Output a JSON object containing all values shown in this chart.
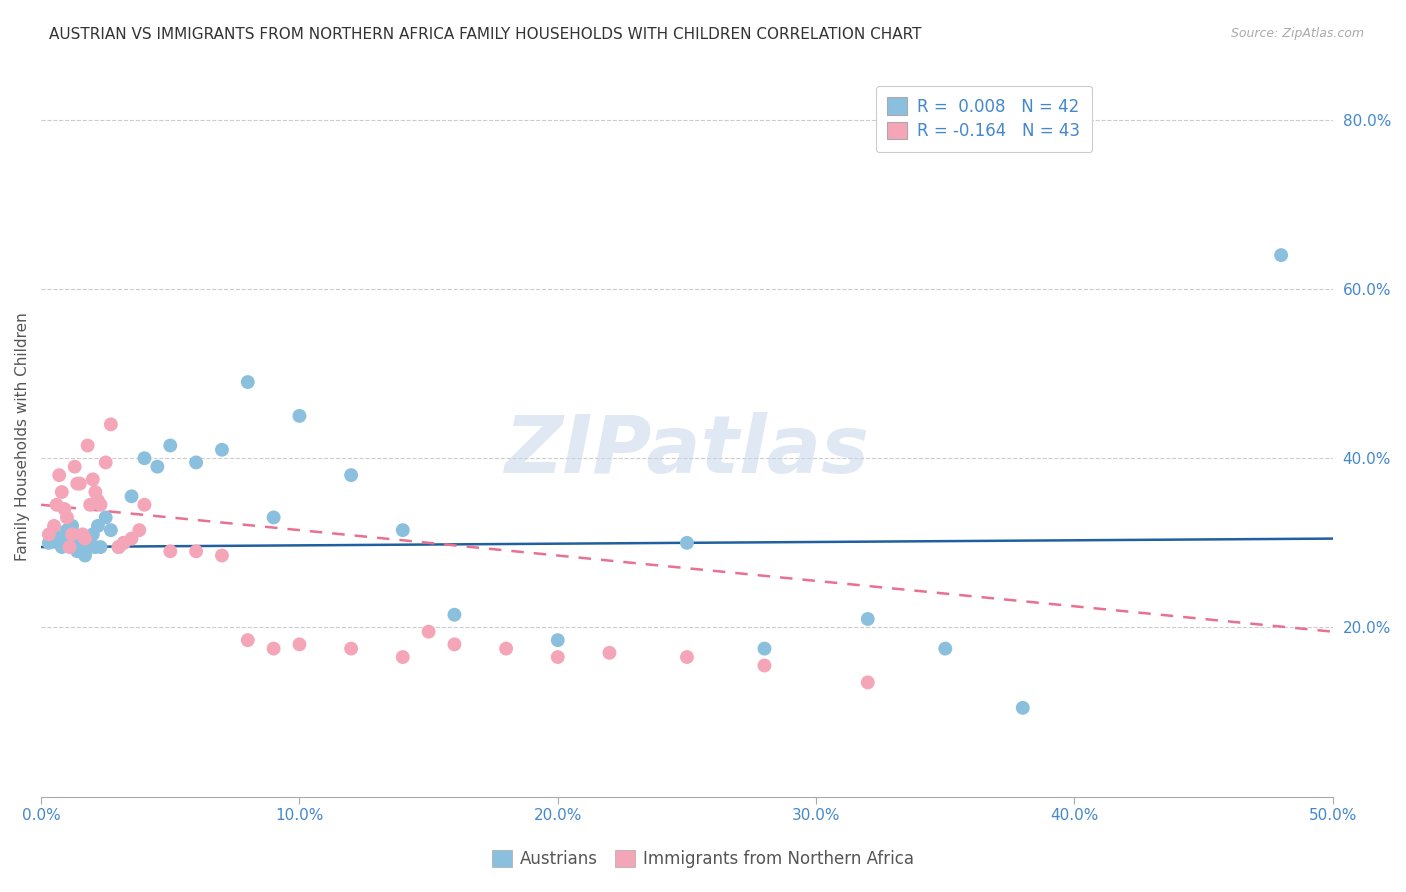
{
  "title": "AUSTRIAN VS IMMIGRANTS FROM NORTHERN AFRICA FAMILY HOUSEHOLDS WITH CHILDREN CORRELATION CHART",
  "source": "Source: ZipAtlas.com",
  "ylabel": "Family Households with Children",
  "xlim": [
    0.0,
    0.5
  ],
  "ylim": [
    0.0,
    0.85
  ],
  "xticks": [
    0.0,
    0.1,
    0.2,
    0.3,
    0.4,
    0.5
  ],
  "yticks": [
    0.2,
    0.4,
    0.6,
    0.8
  ],
  "xticklabels": [
    "0.0%",
    "10.0%",
    "20.0%",
    "30.0%",
    "40.0%",
    "50.0%"
  ],
  "yticklabels": [
    "20.0%",
    "40.0%",
    "60.0%",
    "80.0%"
  ],
  "color_blue": "#8bbfde",
  "color_pink": "#f4a6b8",
  "line_blue": "#2060a0",
  "line_pink": "#e87090",
  "legend_label1": "R =  0.008   N = 42",
  "legend_label2": "R = -0.164   N = 43",
  "watermark": "ZIPatlas",
  "title_fontsize": 11,
  "axis_label_fontsize": 11,
  "tick_fontsize": 11,
  "blue_x": [
    0.003,
    0.005,
    0.007,
    0.008,
    0.009,
    0.01,
    0.011,
    0.012,
    0.013,
    0.014,
    0.015,
    0.016,
    0.017,
    0.018,
    0.019,
    0.02,
    0.021,
    0.022,
    0.023,
    0.025,
    0.027,
    0.03,
    0.032,
    0.035,
    0.04,
    0.045,
    0.05,
    0.06,
    0.07,
    0.08,
    0.09,
    0.1,
    0.12,
    0.14,
    0.16,
    0.2,
    0.25,
    0.28,
    0.32,
    0.35,
    0.38,
    0.48
  ],
  "blue_y": [
    0.3,
    0.31,
    0.3,
    0.295,
    0.305,
    0.315,
    0.3,
    0.32,
    0.3,
    0.29,
    0.305,
    0.3,
    0.285,
    0.3,
    0.295,
    0.31,
    0.295,
    0.32,
    0.295,
    0.33,
    0.315,
    0.295,
    0.3,
    0.355,
    0.4,
    0.39,
    0.415,
    0.395,
    0.41,
    0.49,
    0.33,
    0.45,
    0.38,
    0.315,
    0.215,
    0.185,
    0.3,
    0.175,
    0.21,
    0.175,
    0.105,
    0.64
  ],
  "pink_x": [
    0.003,
    0.005,
    0.006,
    0.007,
    0.008,
    0.009,
    0.01,
    0.011,
    0.012,
    0.013,
    0.014,
    0.015,
    0.016,
    0.017,
    0.018,
    0.019,
    0.02,
    0.021,
    0.022,
    0.023,
    0.025,
    0.027,
    0.03,
    0.032,
    0.035,
    0.038,
    0.04,
    0.05,
    0.06,
    0.07,
    0.08,
    0.09,
    0.1,
    0.12,
    0.14,
    0.15,
    0.16,
    0.18,
    0.2,
    0.22,
    0.25,
    0.28,
    0.32
  ],
  "pink_y": [
    0.31,
    0.32,
    0.345,
    0.38,
    0.36,
    0.34,
    0.33,
    0.295,
    0.31,
    0.39,
    0.37,
    0.37,
    0.31,
    0.305,
    0.415,
    0.345,
    0.375,
    0.36,
    0.35,
    0.345,
    0.395,
    0.44,
    0.295,
    0.3,
    0.305,
    0.315,
    0.345,
    0.29,
    0.29,
    0.285,
    0.185,
    0.175,
    0.18,
    0.175,
    0.165,
    0.195,
    0.18,
    0.175,
    0.165,
    0.17,
    0.165,
    0.155,
    0.135
  ]
}
